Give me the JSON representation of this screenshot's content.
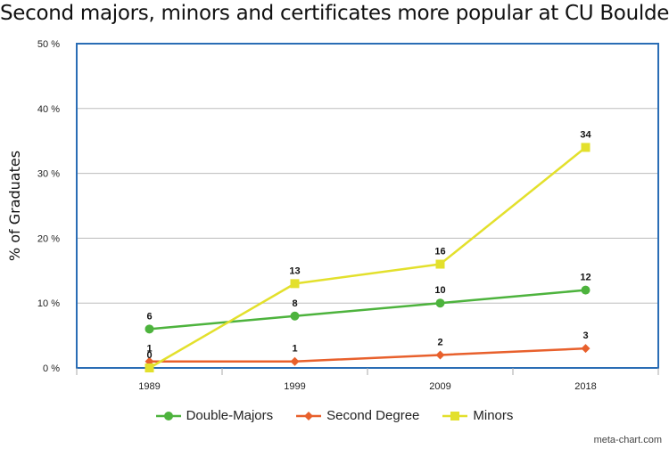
{
  "chart_data": {
    "type": "line",
    "title": "Second majors, minors and certificates more popular at CU Boulder",
    "xlabel": "",
    "ylabel": "% of Graduates",
    "categories": [
      "1989",
      "1999",
      "2009",
      "2018"
    ],
    "ylim": [
      0,
      50
    ],
    "yticks": [
      0,
      10,
      20,
      30,
      40,
      50
    ],
    "ytick_labels": [
      "0 %",
      "10 %",
      "20 %",
      "30 %",
      "40 %",
      "50 %"
    ],
    "grid": true,
    "legend_position": "bottom",
    "series": [
      {
        "name": "Double-Majors",
        "values": [
          6,
          8,
          10,
          12
        ],
        "color": "#4db33d",
        "marker": "circle"
      },
      {
        "name": "Second Degree",
        "values": [
          1,
          1,
          2,
          3
        ],
        "color": "#e8602c",
        "marker": "diamond"
      },
      {
        "name": "Minors",
        "values": [
          0,
          13,
          16,
          34
        ],
        "color": "#e3e02c",
        "marker": "square"
      }
    ]
  },
  "credit": "meta-chart.com"
}
